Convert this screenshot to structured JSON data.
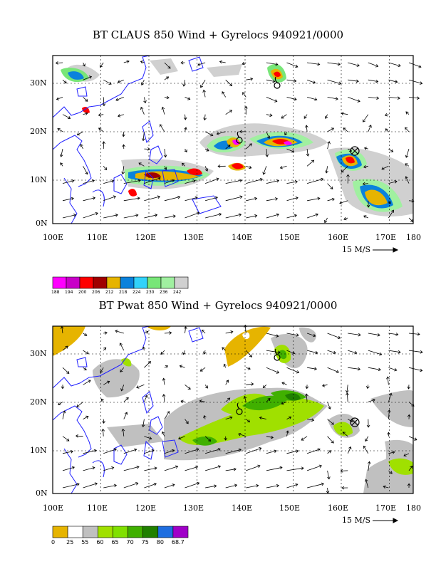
{
  "top_panel": {
    "title": "BT CLAUS 850 Wind + Gyrelocs 940921/0000",
    "y_ticks": [
      "30N",
      "20N",
      "10N",
      "0N"
    ],
    "x_ticks": [
      "100E",
      "110E",
      "120E",
      "130E",
      "140E",
      "150E",
      "160E",
      "170E",
      "180"
    ],
    "ref_vector_label": "15 M/S",
    "colorbar": {
      "labels": [
        "188",
        "194",
        "200",
        "206",
        "212",
        "218",
        "224",
        "230",
        "236",
        "242"
      ],
      "colors": [
        "#ff00ff",
        "#c800c8",
        "#ff0000",
        "#a00000",
        "#e6b400",
        "#0a82dc",
        "#32d2fa",
        "#78e678",
        "#a0f0a0",
        "#d0d0d0"
      ]
    }
  },
  "bottom_panel": {
    "title": "BT Pwat 850 Wind + Gyrelocs 940921/0000",
    "y_ticks": [
      "30N",
      "20N",
      "10N",
      "0N"
    ],
    "x_ticks": [
      "100E",
      "110E",
      "120E",
      "130E",
      "140E",
      "150E",
      "160E",
      "170E",
      "180"
    ],
    "ref_vector_label": "15 M/S",
    "colorbar": {
      "labels": [
        "0",
        "25",
        "55",
        "60",
        "65",
        "70",
        "75",
        "80",
        "68.7"
      ],
      "colors": [
        "#e6b400",
        "#ffffff",
        "#c0c0c0",
        "#a0e000",
        "#80e000",
        "#40b000",
        "#208000",
        "#1e6ee0",
        "#a000c8"
      ]
    }
  }
}
